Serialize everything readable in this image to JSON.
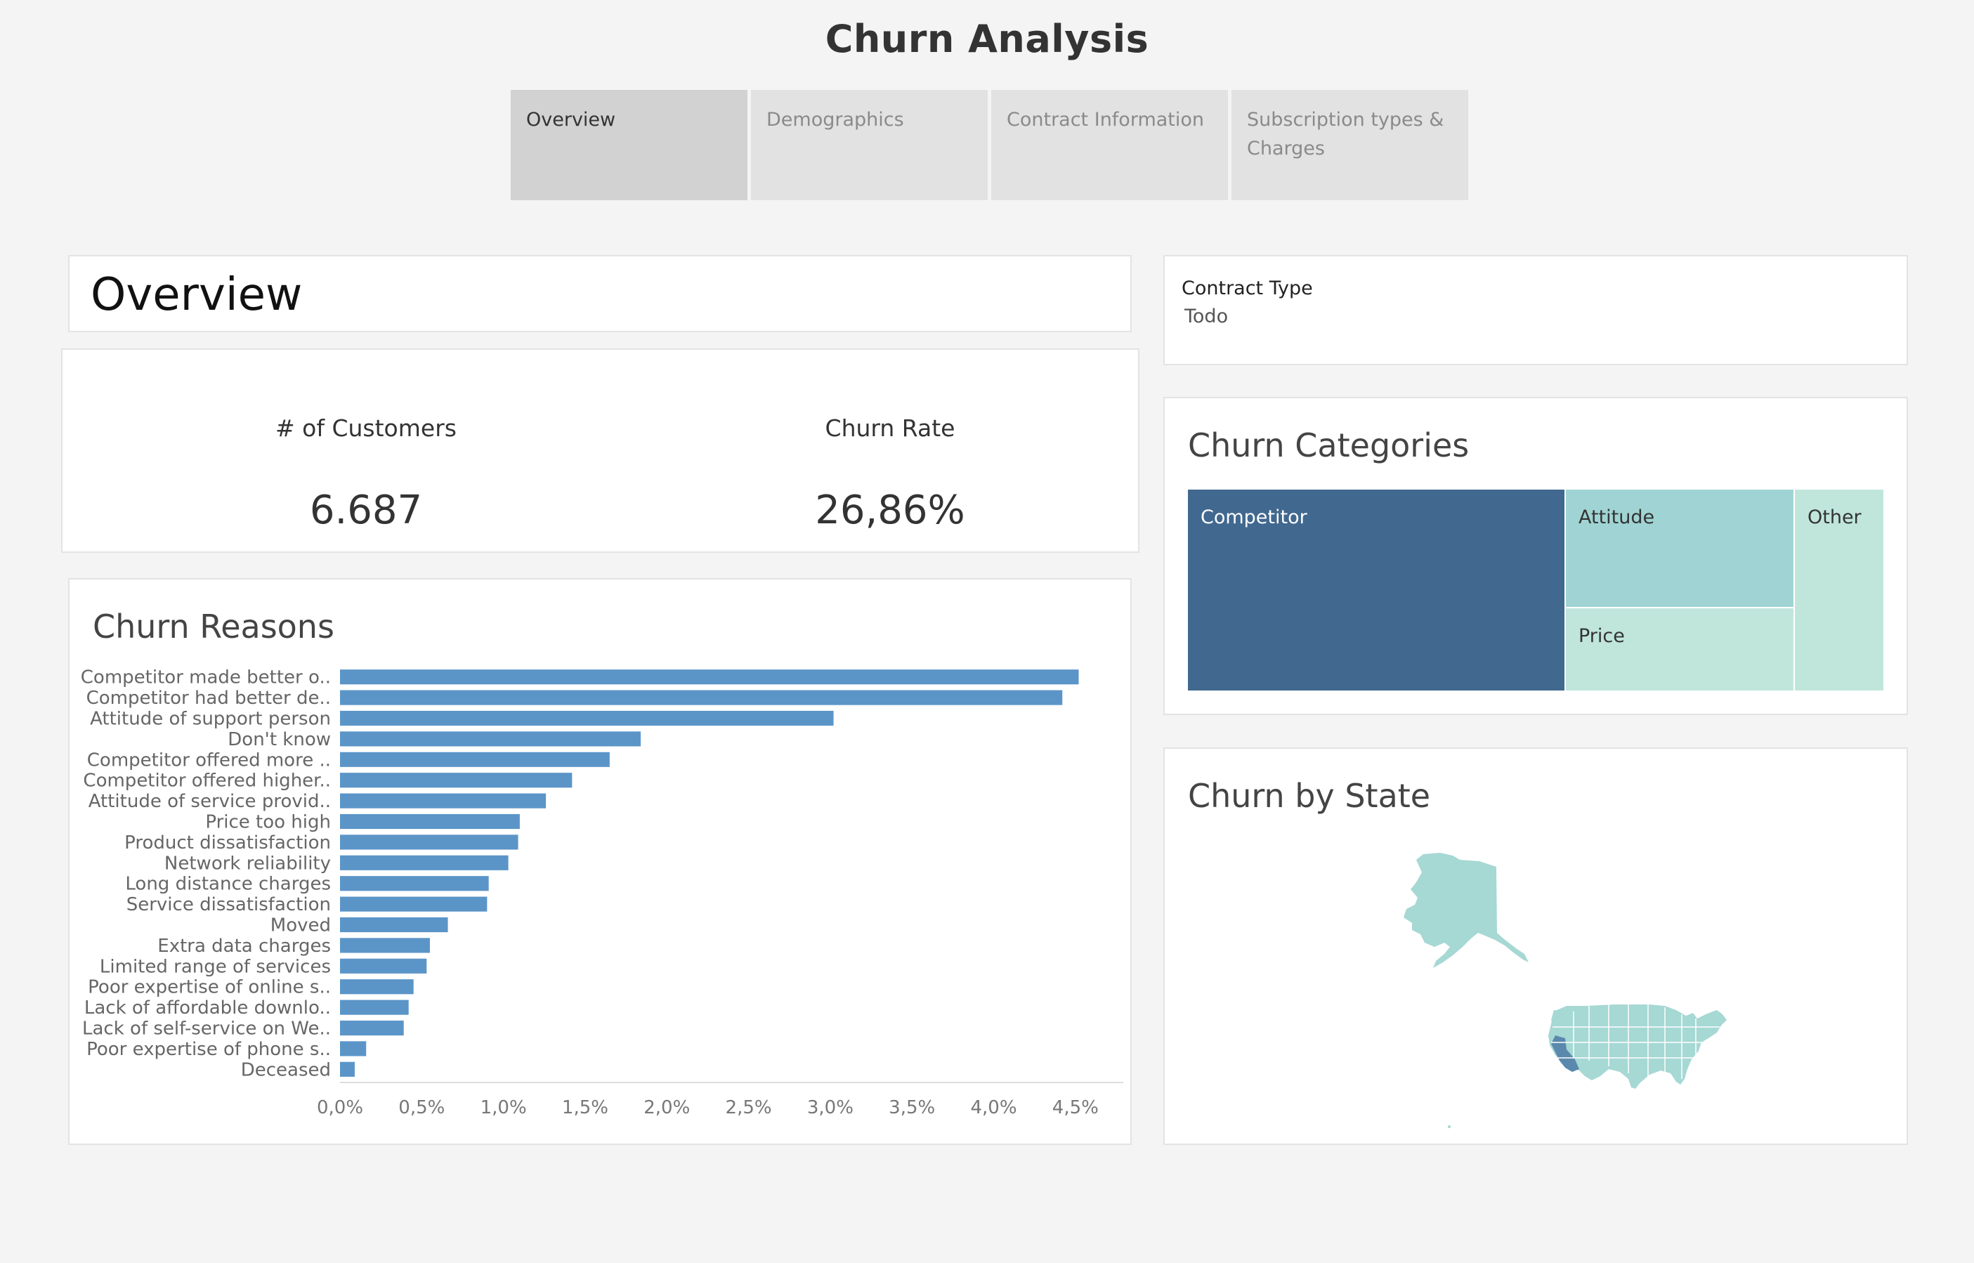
{
  "header": {
    "title": "Churn Analysis"
  },
  "tabs": [
    {
      "label": "Overview",
      "active": true
    },
    {
      "label": "Demographics",
      "active": false
    },
    {
      "label": "Contract Information",
      "active": false
    },
    {
      "label": "Subscription types & Charges",
      "active": false
    }
  ],
  "overview": {
    "title": "Overview"
  },
  "kpis": {
    "customers_label": "# of Customers",
    "customers_value": "6.687",
    "churn_label": "Churn Rate",
    "churn_value": "26,86%"
  },
  "contract_filter": {
    "label": "Contract Type",
    "value": "Todo"
  },
  "treemap": {
    "title": "Churn Categories",
    "cells": [
      {
        "label": "Competitor",
        "color": "#41688f"
      },
      {
        "label": "Attitude",
        "color": "#a0d4d4"
      },
      {
        "label": "Price",
        "color": "#c0e6dc"
      },
      {
        "label": "Other",
        "color": "#c0e6dc"
      }
    ]
  },
  "map": {
    "title": "Churn by State",
    "low_color": "#a6d8d4",
    "high_color": "#5b89ad"
  },
  "chart_data": {
    "type": "bar",
    "orientation": "horizontal",
    "title": "Churn Reasons",
    "categories": [
      "Competitor made better o..",
      "Competitor had better de..",
      "Attitude of support person",
      "Don't know",
      "Competitor offered more ..",
      "Competitor offered higher..",
      "Attitude of service provid..",
      "Price too high",
      "Product dissatisfaction",
      "Network reliability",
      "Long distance charges",
      "Service dissatisfaction",
      "Moved",
      "Extra data charges",
      "Limited range of services",
      "Poor expertise of online s..",
      "Lack of affordable downlo..",
      "Lack of self-service on We..",
      "Poor expertise of phone s..",
      "Deceased"
    ],
    "values": [
      4.52,
      4.42,
      3.02,
      1.84,
      1.65,
      1.42,
      1.26,
      1.1,
      1.09,
      1.03,
      0.91,
      0.9,
      0.66,
      0.55,
      0.53,
      0.45,
      0.42,
      0.39,
      0.16,
      0.09
    ],
    "xlim": [
      0,
      4.75
    ],
    "xticks": [
      "0,0%",
      "0,5%",
      "1,0%",
      "1,5%",
      "2,0%",
      "2,5%",
      "3,0%",
      "3,5%",
      "4,0%",
      "4,5%"
    ],
    "xtick_values": [
      0,
      0.5,
      1.0,
      1.5,
      2.0,
      2.5,
      3.0,
      3.5,
      4.0,
      4.5
    ],
    "bar_color": "#5b95c8",
    "xlabel": "",
    "ylabel": ""
  }
}
